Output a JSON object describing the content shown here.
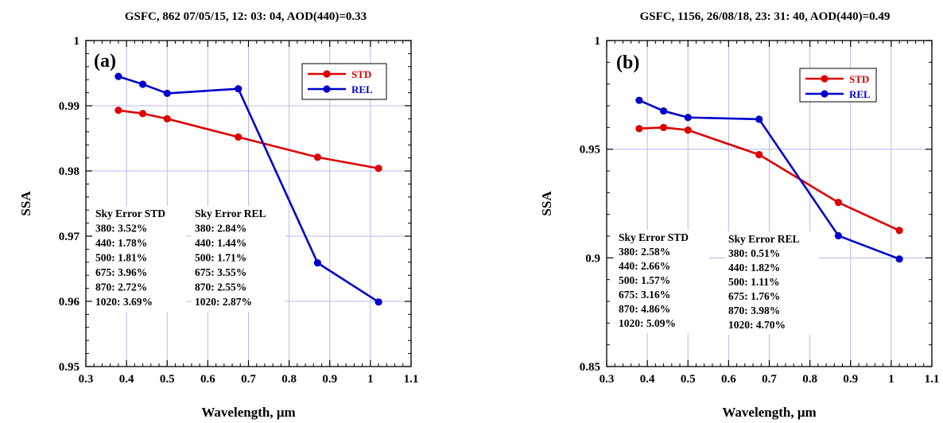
{
  "chart_data": [
    {
      "type": "line",
      "panel_label": "(a)",
      "title": "GSFC, 862 07/05/15, 12: 03: 04, AOD(440)=0.33",
      "xlabel": "Wavelength, μm",
      "ylabel": "SSA",
      "xlim": [
        0.3,
        1.1
      ],
      "ylim": [
        0.95,
        1.0
      ],
      "xticks": [
        0.3,
        0.4,
        0.5,
        0.6,
        0.7,
        0.8,
        0.9,
        1.0,
        1.1
      ],
      "xtick_labels": [
        "0.3",
        "0.4",
        "0.5",
        "0.6",
        "0.7",
        "0.8",
        "0.9",
        "1",
        "1.1"
      ],
      "yticks": [
        0.95,
        0.96,
        0.97,
        0.98,
        0.99,
        1.0
      ],
      "ytick_labels": [
        "0.95",
        "0.96",
        "0.97",
        "0.98",
        "0.99",
        "1"
      ],
      "grid": true,
      "legend_position": "top-right",
      "series": [
        {
          "name": "STD",
          "color": "#dd0000",
          "x": [
            0.38,
            0.44,
            0.5,
            0.675,
            0.87,
            1.02
          ],
          "y": [
            0.9893,
            0.9888,
            0.988,
            0.9852,
            0.9821,
            0.9804
          ]
        },
        {
          "name": "REL",
          "color": "#0000cc",
          "x": [
            0.38,
            0.44,
            0.5,
            0.675,
            0.87,
            1.02
          ],
          "y": [
            0.9945,
            0.9933,
            0.9919,
            0.9926,
            0.9659,
            0.9599
          ]
        }
      ],
      "annotations": [
        {
          "lines": [
            "Sky Error STD",
            "380: 3.52%",
            "440: 1.78%",
            "500: 1.81%",
            "675: 3.96%",
            "870: 2.72%",
            "1020: 3.69%"
          ]
        },
        {
          "lines": [
            "Sky Error REL",
            "380: 2.84%",
            "440: 1.44%",
            "500: 1.71%",
            "675: 3.55%",
            "870: 2.55%",
            "1020: 2.87%"
          ]
        }
      ]
    },
    {
      "type": "line",
      "panel_label": "(b)",
      "title": "GSFC, 1156, 26/08/18, 23: 31: 40, AOD(440)=0.49",
      "xlabel": "Wavelength, μm",
      "ylabel": "SSA",
      "xlim": [
        0.3,
        1.1
      ],
      "ylim": [
        0.85,
        1.0
      ],
      "xticks": [
        0.3,
        0.4,
        0.5,
        0.6,
        0.7,
        0.8,
        0.9,
        1.0,
        1.1
      ],
      "xtick_labels": [
        "0.3",
        "0.4",
        "0.5",
        "0.6",
        "0.7",
        "0.8",
        "0.9",
        "1",
        "1.1"
      ],
      "yticks": [
        0.85,
        0.9,
        0.95,
        1.0
      ],
      "ytick_labels": [
        "0.85",
        "0.9",
        "0.95",
        "1"
      ],
      "grid": true,
      "legend_position": "top-right",
      "series": [
        {
          "name": "STD",
          "color": "#dd0000",
          "x": [
            0.38,
            0.44,
            0.5,
            0.675,
            0.87,
            1.02
          ],
          "y": [
            0.9595,
            0.96,
            0.9588,
            0.9475,
            0.9255,
            0.9126
          ]
        },
        {
          "name": "REL",
          "color": "#0000cc",
          "x": [
            0.38,
            0.44,
            0.5,
            0.675,
            0.87,
            1.02
          ],
          "y": [
            0.9725,
            0.9676,
            0.9646,
            0.9638,
            0.9102,
            0.8995
          ]
        }
      ],
      "annotations": [
        {
          "lines": [
            "Sky Error STD",
            "380: 2.58%",
            "440: 2.66%",
            "500: 1.57%",
            "675: 3.16%",
            "870: 4.86%",
            "1020: 5.09%"
          ]
        },
        {
          "lines": [
            "Sky Error REL",
            "380: 0.51%",
            "440: 1.82%",
            "500: 1.11%",
            "675: 1.76%",
            "870: 3.98%",
            "1020: 4.70%"
          ]
        }
      ]
    }
  ]
}
